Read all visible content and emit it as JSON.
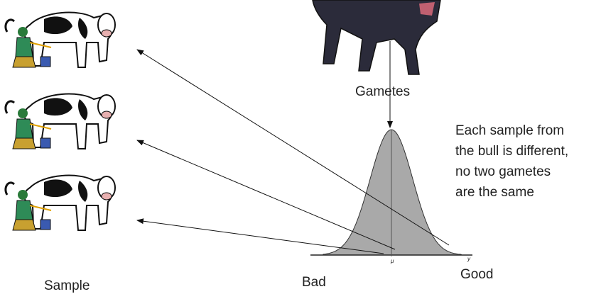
{
  "labels": {
    "gametes": "Gametes",
    "note": [
      "Each sample from",
      "the bull is different,",
      "no two gametes",
      "are the same"
    ],
    "sample": "Sample",
    "bad": "Bad",
    "good": "Good",
    "mu": "μ",
    "y": "y"
  }
}
